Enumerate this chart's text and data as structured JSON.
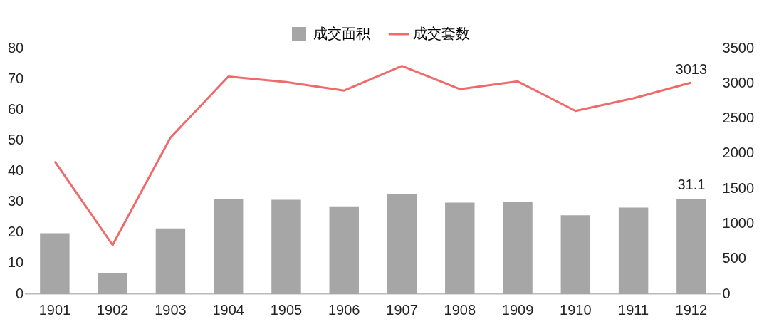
{
  "chart_data": {
    "type": "bar",
    "categories": [
      "1901",
      "1902",
      "1903",
      "1904",
      "1905",
      "1906",
      "1907",
      "1908",
      "1909",
      "1910",
      "1911",
      "1912"
    ],
    "series": [
      {
        "name": "成交面积",
        "color": "#a6a6a6",
        "values": [
          19.8,
          6.8,
          21.4,
          31.1,
          30.7,
          28.6,
          32.7,
          29.8,
          30,
          25.7,
          28.2,
          31.1
        ],
        "value_labels": [
          null,
          null,
          null,
          null,
          null,
          null,
          null,
          null,
          null,
          null,
          null,
          "31.1"
        ]
      },
      {
        "name": "成交套数",
        "type": "line",
        "axis": "y2",
        "color": "#ef6b6b",
        "values": [
          1890,
          700,
          2230,
          3100,
          3020,
          2900,
          3250,
          2920,
          3030,
          2610,
          2790,
          3013
        ],
        "value_labels": [
          null,
          null,
          null,
          null,
          null,
          null,
          null,
          null,
          null,
          null,
          null,
          "3013"
        ]
      }
    ],
    "ylim": [
      0,
      80
    ],
    "yticks": [
      0,
      10,
      20,
      30,
      40,
      50,
      60,
      70,
      80
    ],
    "y2lim": [
      0,
      3500
    ],
    "y2ticks": [
      0,
      500,
      1000,
      1500,
      2000,
      2500,
      3000,
      3500
    ],
    "legend": "top",
    "grid": false,
    "marker": "none",
    "line_style": "solid"
  }
}
